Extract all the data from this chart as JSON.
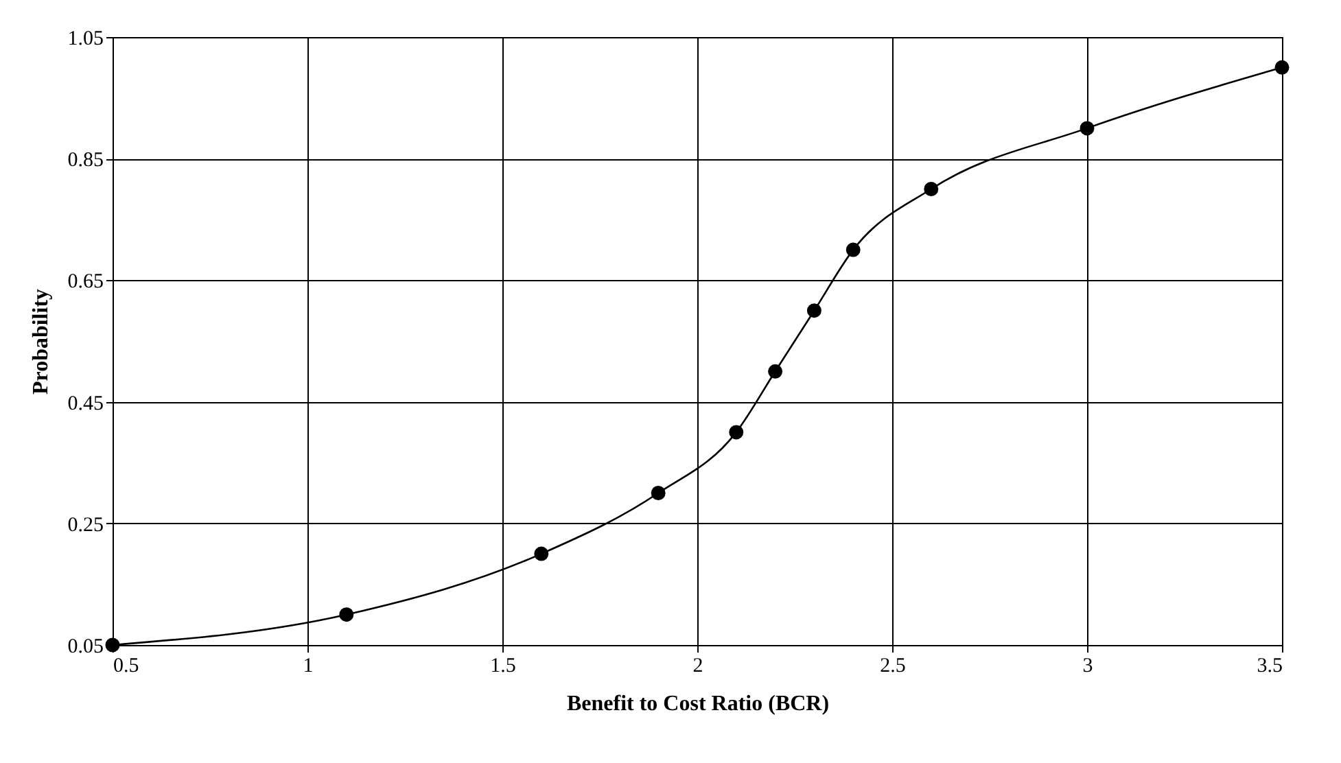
{
  "chart_data": {
    "type": "line",
    "xlabel": "Benefit to Cost Ratio (BCR)",
    "ylabel": "Probability",
    "x": [
      0.5,
      1.1,
      1.6,
      1.9,
      2.1,
      2.2,
      2.3,
      2.4,
      2.6,
      3.0,
      3.5
    ],
    "series": [
      {
        "color": "#000000",
        "values": [
          0.05,
          0.1,
          0.2,
          0.3,
          0.4,
          0.5,
          0.6,
          0.7,
          0.8,
          0.9,
          1.0
        ]
      }
    ],
    "xlim": [
      0.5,
      3.5
    ],
    "xticks": [
      0.5,
      1,
      1.5,
      2,
      2.5,
      3,
      3.5
    ],
    "ylim": [
      0.05,
      1.05
    ],
    "yticks": [
      0.05,
      0.25,
      0.45,
      0.65,
      0.85,
      1.05
    ],
    "grid": true,
    "marker": "circle",
    "line_style": "solid"
  }
}
